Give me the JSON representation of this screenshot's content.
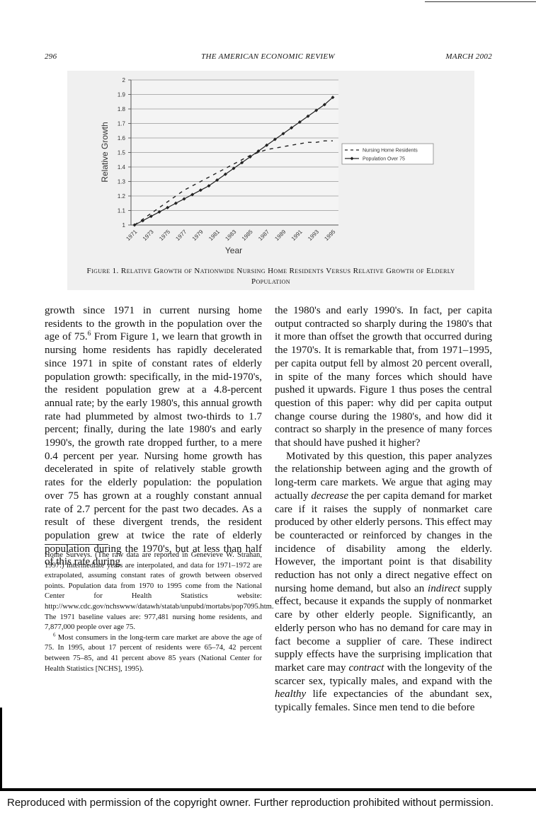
{
  "header": {
    "page": "296",
    "journal": "THE AMERICAN ECONOMIC REVIEW",
    "date": "MARCH 2002"
  },
  "chart_data": {
    "type": "line",
    "x_label": "Year",
    "y_label": "Relative Growth",
    "categories": [
      "1971",
      null,
      "1973",
      null,
      "1975",
      null,
      "1977",
      null,
      "1979",
      null,
      "1981",
      null,
      "1983",
      null,
      "1985",
      null,
      "1987",
      null,
      "1989",
      null,
      "1991",
      null,
      "1993",
      null,
      "1995"
    ],
    "series": [
      {
        "name": "Nursing Home Residents",
        "color": "#222222",
        "dashed": true,
        "marker": "none",
        "values": [
          1.0,
          1.04,
          1.08,
          1.12,
          1.16,
          1.2,
          1.24,
          1.27,
          1.3,
          1.33,
          1.36,
          1.39,
          1.42,
          1.45,
          1.48,
          1.5,
          1.52,
          1.53,
          1.54,
          1.55,
          1.56,
          1.57,
          1.57,
          1.58,
          1.58
        ]
      },
      {
        "name": "Population Over 75",
        "color": "#222222",
        "dashed": false,
        "marker": "diamond",
        "values": [
          1.0,
          1.03,
          1.06,
          1.09,
          1.12,
          1.15,
          1.18,
          1.21,
          1.24,
          1.27,
          1.31,
          1.35,
          1.39,
          1.43,
          1.47,
          1.51,
          1.55,
          1.59,
          1.63,
          1.67,
          1.71,
          1.75,
          1.79,
          1.83,
          1.88
        ]
      }
    ],
    "ylim": [
      1,
      2
    ],
    "yticks": [
      1,
      1.1,
      1.2,
      1.3,
      1.4,
      1.5,
      1.6,
      1.7,
      1.8,
      1.9,
      2
    ],
    "grid": true,
    "legend": "right"
  },
  "figure_caption": "Figure 1. Relative Growth of Nationwide Nursing Home Residents Versus Relative Growth of Elderly Population",
  "body": {
    "left": [
      [
        {
          "text": "growth since 1971 in current nursing home residents to the growth in the population over the age of 75."
        },
        {
          "text": "6",
          "sup": true
        },
        {
          "text": " From Figure 1, we learn that growth in nursing home residents has rapidly decelerated since 1971 in spite of constant rates of elderly population growth: specifically, in the mid-1970's, the resident population grew at a 4.8-percent annual rate; by the early 1980's, this annual growth rate had plummeted by almost two-thirds to 1.7 percent; finally, during the late 1980's and early 1990's, the growth rate dropped further, to a mere 0.4 percent per year. Nursing home growth has decelerated in spite of relatively stable growth rates for the elderly population: the population over 75 has grown at a roughly constant annual rate of 2.7 percent for the past two decades. As a result of these divergent trends, the resident population grew at twice the rate of elderly population during the 1970's, but at less than half of this rate during"
        }
      ]
    ],
    "right": [
      [
        {
          "text": "the 1980's and early 1990's. In fact, per capita output contracted so sharply during the 1980's that it more than offset the growth that occurred during the 1970's. It is remarkable that, from 1971–1995, per capita output fell by almost 20 percent overall, in spite of the many forces which should have pushed it upwards. Figure 1 thus poses the central question of this paper: why did per capita output change course during the 1980's, and how did it contract so sharply in the presence of many forces that should have pushed it higher?"
        }
      ],
      [
        {
          "text": "Motivated by this question, this paper analyzes the relationship between aging and the growth of long-term care markets. We argue that aging may actually "
        },
        {
          "text": "decrease",
          "italic": true
        },
        {
          "text": " the per capita demand for market care if it raises the supply of nonmarket care produced by other elderly persons. This effect may be counteracted or reinforced by changes in the incidence of disability among the elderly. However, the important point is that disability reduction has not only a direct negative effect on nursing home demand, but also an "
        },
        {
          "text": "indirect",
          "italic": true
        },
        {
          "text": " supply effect, because it expands the supply of nonmarket care by other elderly people. Significantly, an elderly person who has no demand for care may in fact become a supplier of care. These indirect supply effects have the surprising implication that market care may "
        },
        {
          "text": "contract",
          "italic": true
        },
        {
          "text": " with the longevity of the scarcer sex, typically males, and expand with the "
        },
        {
          "text": "healthy",
          "italic": true
        },
        {
          "text": " life expectancies of the abundant sex, typically females. Since men tend to die before"
        }
      ]
    ]
  },
  "footnotes": [
    [
      {
        "text": "Home Surveys. (The raw data are reported in Genevieve W. Strahan, 1997.) Intermediate years are interpolated, and data for 1971–1972 are extrapolated, assuming constant rates of growth between observed points. Population data from 1970 to 1995 come from the National Center for Health Statistics website: http://www.cdc.gov/nchswww/datawh/statab/unpubd/mortabs/pop7095.htm. The 1971 baseline values are: 977,481 nursing home residents, and 7,877,000 people over age 75."
      }
    ],
    [
      {
        "text": "6",
        "sup": true
      },
      {
        "text": " Most consumers in the long-term care market are above the age of 75. In 1995, about 17 percent of residents were 65–74, 42 percent between 75–85, and 41 percent above 85 years (National Center for Health Statistics [NCHS], 1995)."
      }
    ]
  ],
  "footer": "Reproduced with permission of the copyright owner.  Further reproduction prohibited without permission."
}
